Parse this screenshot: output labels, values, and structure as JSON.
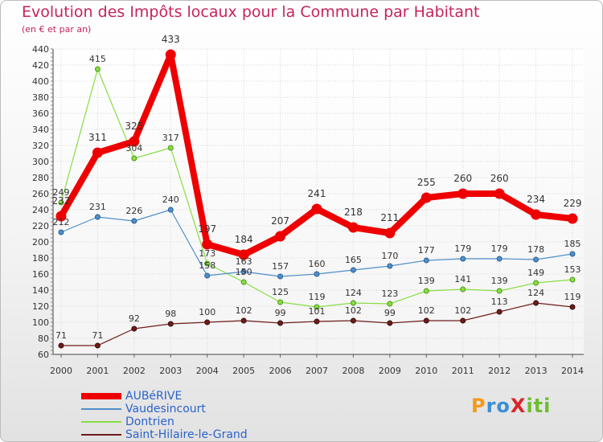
{
  "chart_data": {
    "type": "line",
    "title": "Evolution des Impôts locaux pour la Commune par Habitant",
    "subtitle": "(en € et par an)",
    "x": [
      "2000",
      "2001",
      "2002",
      "2003",
      "2004",
      "2005",
      "2006",
      "2007",
      "2008",
      "2009",
      "2010",
      "2011",
      "2012",
      "2013",
      "2014"
    ],
    "yticks": [
      60,
      80,
      100,
      120,
      140,
      160,
      180,
      200,
      220,
      240,
      260,
      280,
      300,
      320,
      340,
      360,
      380,
      400,
      420,
      440
    ],
    "ylim": [
      60,
      440
    ],
    "grid": true,
    "legend_position": "bottom-left",
    "series": [
      {
        "name": "AUBéRIVE",
        "color": "#ee0000",
        "values": [
          232,
          311,
          325,
          433,
          197,
          184,
          207,
          241,
          218,
          211,
          255,
          260,
          260,
          234,
          229
        ],
        "labels": [
          "232",
          "311",
          "325",
          "433",
          "197",
          "184",
          "207",
          "241",
          "218",
          "211",
          "255",
          "260",
          "260",
          "234",
          "229"
        ]
      },
      {
        "name": "Vaudesincourt",
        "color": "#4f8fcb",
        "values": [
          212,
          231,
          226,
          240,
          158,
          163,
          157,
          160,
          165,
          170,
          177,
          179,
          179,
          178,
          185
        ],
        "labels": [
          "212",
          "231",
          "226",
          "240",
          "158",
          "163",
          "157",
          "160",
          "165",
          "170",
          "177",
          "179",
          "179",
          "178",
          "185"
        ]
      },
      {
        "name": "Dontrien",
        "color": "#88dd44",
        "values": [
          249,
          415,
          304,
          317,
          173,
          150,
          125,
          119,
          124,
          123,
          139,
          141,
          139,
          149,
          153
        ],
        "labels": [
          "249",
          "415",
          "304",
          "317",
          "173",
          "150",
          "125",
          "119",
          "124",
          "123",
          "139",
          "141",
          "139",
          "149",
          "153"
        ]
      },
      {
        "name": "Saint-Hilaire-le-Grand",
        "color": "#6e1c1c",
        "values": [
          71,
          71,
          92,
          98,
          100,
          102,
          99,
          101,
          102,
          99,
          102,
          102,
          113,
          124,
          119
        ],
        "labels": [
          "71",
          "71",
          "92",
          "98",
          "100",
          "102",
          "99",
          "101",
          "102",
          "99",
          "102",
          "102",
          "113",
          "124",
          "119"
        ]
      }
    ]
  },
  "brand": {
    "text": "ProXiti"
  }
}
